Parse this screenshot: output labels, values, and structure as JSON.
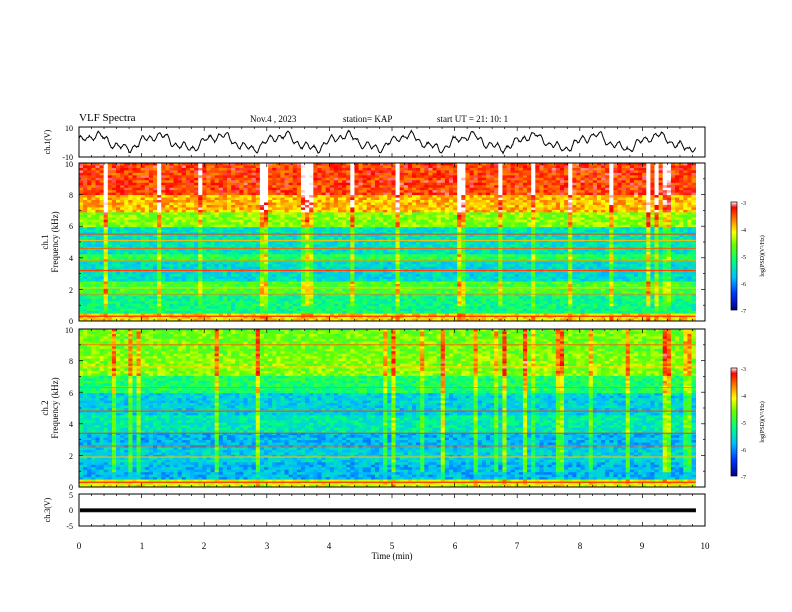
{
  "header": {
    "title": "VLF Spectra",
    "date": "Nov.4  , 2023",
    "station": "station= KAP",
    "start": "start  UT  =   21: 10: 1"
  },
  "chart_data": [
    {
      "type": "line",
      "name_id": "ch1-waveform",
      "ylabel": "ch.1(V)",
      "ylim": [
        -10,
        10
      ],
      "yticks": [
        "10",
        "-10"
      ],
      "xlim": [
        0,
        10
      ],
      "series_color": "#000000"
    },
    {
      "type": "heatmap",
      "name_id": "ch1-spectrogram",
      "ylabel_line1": "ch.1",
      "ylabel_line2": "Frequency  (kHz)",
      "ylim": [
        0,
        10
      ],
      "yticks": [
        "0",
        "2",
        "4",
        "6",
        "8",
        "10"
      ],
      "xlim": [
        0,
        10
      ],
      "data_extent_min": 9.85,
      "colorbar": {
        "label": "log(PSD)(V²/Hz)",
        "range": [
          -7,
          -3
        ],
        "ticks": [
          "-3",
          "-4",
          "-5",
          "-6",
          "-7"
        ]
      }
    },
    {
      "type": "heatmap",
      "name_id": "ch2-spectrogram",
      "ylabel_line1": "ch.2",
      "ylabel_line2": "Frequency  (kHz)",
      "ylim": [
        0,
        10
      ],
      "yticks": [
        "0",
        "2",
        "4",
        "6",
        "8",
        "10"
      ],
      "xlim": [
        0,
        10
      ],
      "data_extent_min": 9.85,
      "colorbar": {
        "label": "log(PSD)(V²/Hz)",
        "range": [
          -7,
          -3
        ],
        "ticks": [
          "-3",
          "-4",
          "-5",
          "-6",
          "-7"
        ]
      }
    },
    {
      "type": "line",
      "name_id": "ch3-waveform",
      "ylabel": "ch.3(V)",
      "ylim": [
        -5,
        5
      ],
      "yticks": [
        "5",
        "0",
        "-5"
      ],
      "xlim": [
        0,
        10
      ],
      "xlabel": "Time  (min)",
      "xticks": [
        "0",
        "1",
        "2",
        "3",
        "4",
        "5",
        "6",
        "7",
        "8",
        "9",
        "10"
      ]
    }
  ]
}
